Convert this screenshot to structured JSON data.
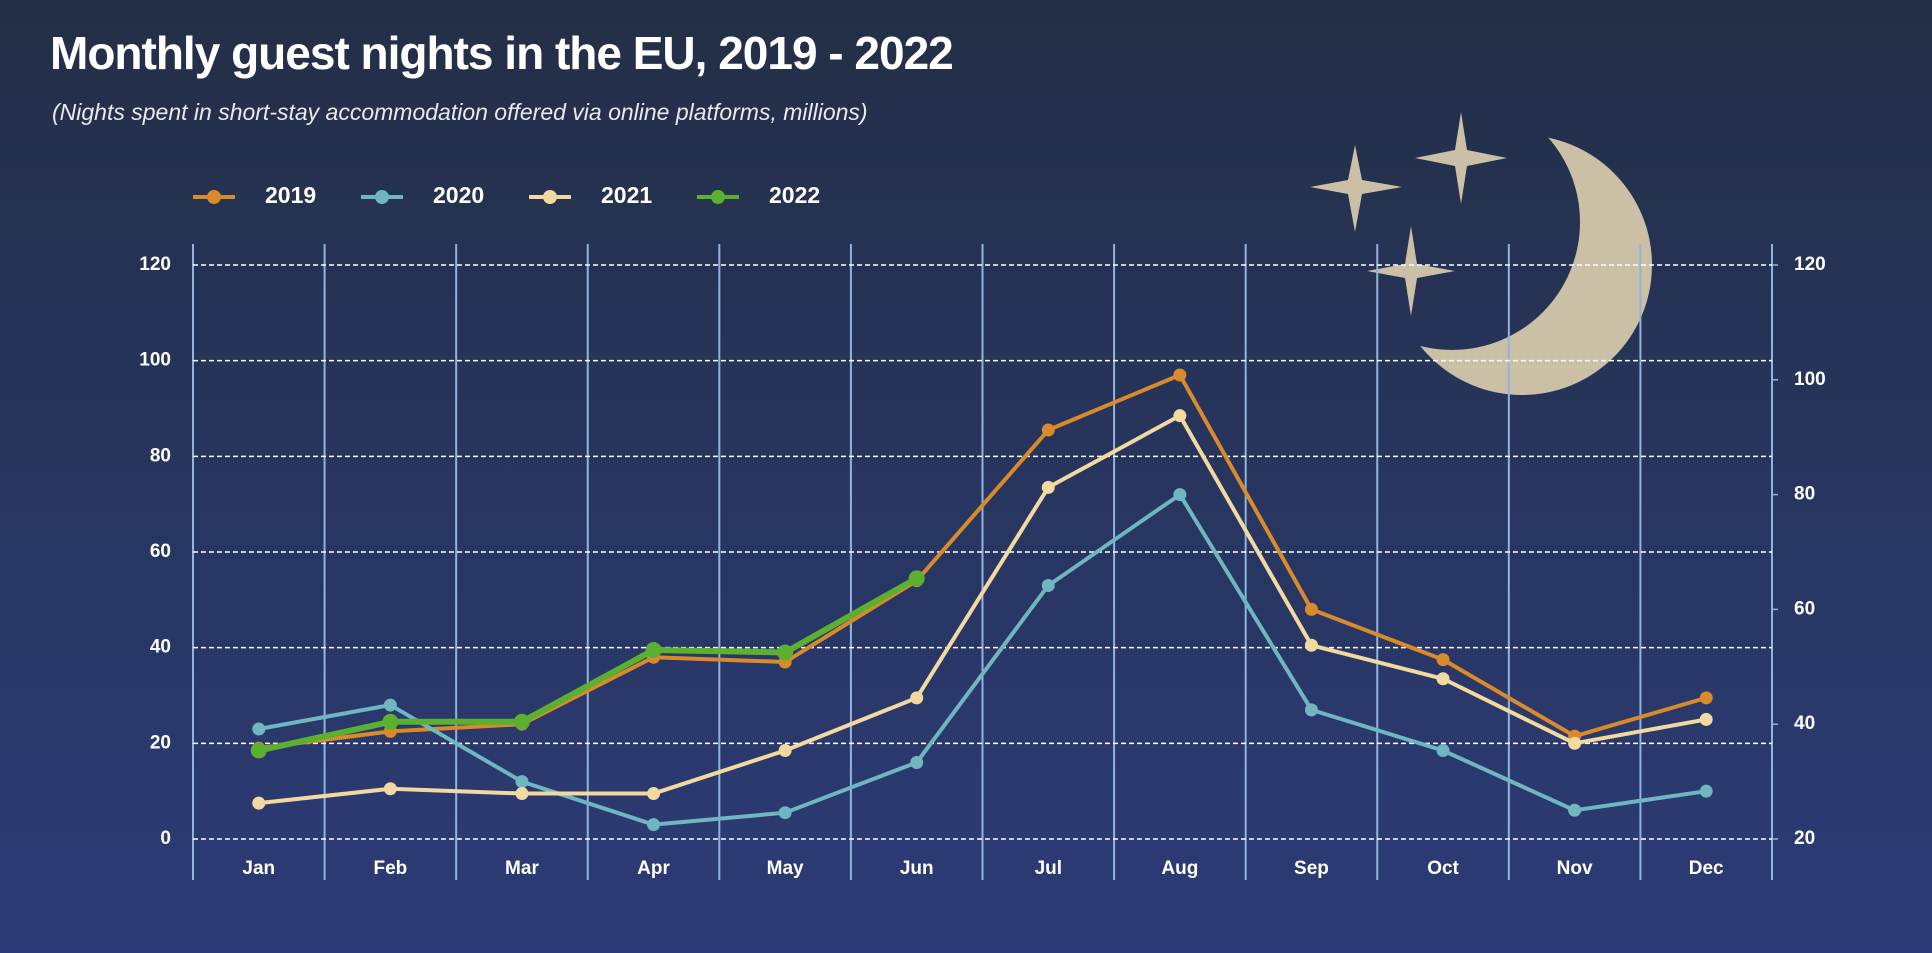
{
  "chart_data": {
    "type": "line",
    "title": "Monthly guest nights in the EU, 2019 - 2022",
    "subtitle": "(Nights spent in short-stay accommodation offered via online platforms, millions)",
    "categories": [
      "Jan",
      "Feb",
      "Mar",
      "Apr",
      "May",
      "Jun",
      "Jul",
      "Aug",
      "Sep",
      "Oct",
      "Nov",
      "Dec"
    ],
    "series": [
      {
        "name": "2019",
        "color": "#d98a2b",
        "values": [
          19,
          22.5,
          24,
          38,
          37,
          54,
          85.5,
          97,
          48,
          37.5,
          21.5,
          29.5
        ]
      },
      {
        "name": "2020",
        "color": "#6fb6c1",
        "values": [
          23,
          28,
          12,
          3,
          5.5,
          16,
          53,
          72,
          27,
          18.5,
          6,
          10
        ]
      },
      {
        "name": "2021",
        "color": "#f2d9a0",
        "values": [
          7.5,
          10.5,
          9.5,
          9.5,
          18.5,
          29.5,
          73.5,
          88.5,
          40.5,
          33.5,
          20,
          25
        ]
      },
      {
        "name": "2022",
        "color": "#5bb030",
        "values": [
          18.5,
          24.5,
          24.5,
          39.5,
          39,
          54.5,
          null,
          null,
          null,
          null,
          null,
          null
        ]
      }
    ],
    "ylim": [
      0,
      120
    ],
    "yticks": [
      0,
      20,
      40,
      60,
      80,
      100,
      120
    ],
    "y2lim": [
      20,
      120
    ],
    "y2ticks": [
      20,
      40,
      60,
      80,
      100,
      120
    ],
    "grid": true
  }
}
